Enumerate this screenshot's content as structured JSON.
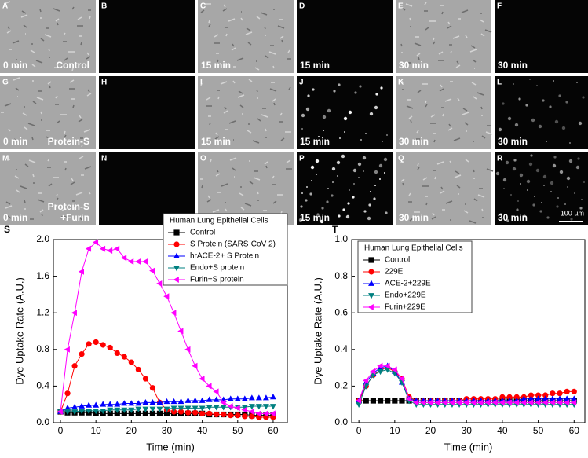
{
  "panels": [
    {
      "letter": "A",
      "time": "0 min",
      "condition": [
        "Control"
      ]
    },
    {
      "letter": "B"
    },
    {
      "letter": "C",
      "time": "15 min"
    },
    {
      "letter": "D",
      "time": "15 min"
    },
    {
      "letter": "E",
      "time": "30 min"
    },
    {
      "letter": "F",
      "time": "30 min"
    },
    {
      "letter": "G",
      "time": "0 min",
      "condition": [
        "Protein-S"
      ]
    },
    {
      "letter": "H"
    },
    {
      "letter": "I",
      "time": "15 min"
    },
    {
      "letter": "J",
      "time": "15 min"
    },
    {
      "letter": "K",
      "time": "30 min"
    },
    {
      "letter": "L",
      "time": "30 min"
    },
    {
      "letter": "M",
      "time": "0 min",
      "condition": [
        "Protein-S",
        "+Furin"
      ]
    },
    {
      "letter": "N"
    },
    {
      "letter": "O",
      "time": "15 min"
    },
    {
      "letter": "P",
      "time": "15 min"
    },
    {
      "letter": "Q",
      "time": "30 min"
    },
    {
      "letter": "R",
      "time": "30 min"
    }
  ],
  "scale_bar": "100 µm",
  "chart_data": [
    {
      "type": "line",
      "panel_label": "S",
      "xlabel": "Time (min)",
      "ylabel": "Dye Uptake Rate (A.U.)",
      "legend_title": "Human Lung Epithelial Cells",
      "legend": "upper right",
      "xlim": [
        -2,
        64
      ],
      "ylim": [
        0,
        2.0
      ],
      "xticks": [
        0,
        10,
        20,
        30,
        40,
        50,
        60
      ],
      "yticks": [
        {
          "value": 0,
          "label": "0.0"
        },
        0.4,
        0.8,
        1.2,
        1.6,
        {
          "value": 2,
          "label": "2.0"
        }
      ],
      "x": [
        0,
        2,
        4,
        6,
        8,
        10,
        12,
        14,
        16,
        18,
        20,
        22,
        24,
        26,
        28,
        30,
        32,
        34,
        36,
        38,
        40,
        42,
        44,
        46,
        48,
        50,
        52,
        54,
        56,
        58,
        60
      ],
      "series": [
        {
          "name": "Control",
          "color": "#000000",
          "marker": "square",
          "values": [
            0.12,
            0.11,
            0.11,
            0.11,
            0.11,
            0.1,
            0.1,
            0.1,
            0.1,
            0.1,
            0.1,
            0.1,
            0.1,
            0.1,
            0.1,
            0.1,
            0.1,
            0.1,
            0.1,
            0.1,
            0.1,
            0.09,
            0.09,
            0.09,
            0.09,
            0.09,
            0.09,
            0.08,
            0.08,
            0.08,
            0.08
          ]
        },
        {
          "name": "S Protein (SARS-CoV-2)",
          "color": "#ff0000",
          "marker": "circle",
          "values": [
            0.12,
            0.32,
            0.62,
            0.75,
            0.86,
            0.88,
            0.85,
            0.82,
            0.76,
            0.72,
            0.66,
            0.58,
            0.48,
            0.38,
            0.22,
            0.14,
            0.12,
            0.12,
            0.11,
            0.11,
            0.1,
            0.1,
            0.09,
            0.09,
            0.08,
            0.08,
            0.07,
            0.07,
            0.06,
            0.06,
            0.06
          ]
        },
        {
          "name": "hrACE-2+ S Protein",
          "color": "#0000ff",
          "marker": "triangle-up",
          "values": [
            0.12,
            0.16,
            0.17,
            0.18,
            0.19,
            0.19,
            0.2,
            0.2,
            0.2,
            0.21,
            0.21,
            0.21,
            0.22,
            0.22,
            0.22,
            0.23,
            0.23,
            0.23,
            0.24,
            0.24,
            0.24,
            0.25,
            0.25,
            0.25,
            0.26,
            0.26,
            0.26,
            0.27,
            0.27,
            0.27,
            0.28
          ]
        },
        {
          "name": "Endo+S protein",
          "color": "#008080",
          "marker": "triangle-down",
          "values": [
            0.12,
            0.12,
            0.12,
            0.13,
            0.13,
            0.13,
            0.13,
            0.14,
            0.14,
            0.14,
            0.14,
            0.15,
            0.15,
            0.15,
            0.15,
            0.15,
            0.16,
            0.16,
            0.16,
            0.16,
            0.16,
            0.17,
            0.17,
            0.17,
            0.17,
            0.17,
            0.17,
            0.18,
            0.18,
            0.18,
            0.18
          ]
        },
        {
          "name": "Furin+S protein",
          "color": "#ff00ff",
          "marker": "triangle-left",
          "values": [
            0.12,
            0.8,
            1.2,
            1.65,
            1.9,
            1.97,
            1.9,
            1.88,
            1.9,
            1.8,
            1.76,
            1.76,
            1.76,
            1.66,
            1.52,
            1.38,
            1.2,
            1.0,
            0.8,
            0.62,
            0.48,
            0.4,
            0.34,
            0.22,
            0.18,
            0.16,
            0.14,
            0.12,
            0.1,
            0.1,
            0.1
          ]
        }
      ]
    },
    {
      "type": "line",
      "panel_label": "T",
      "xlabel": "Time (min)",
      "ylabel": "Dye Uptake Rate (A.U.)",
      "legend_title": "Human Lung Epithelial Cells",
      "legend": "upper left",
      "xlim": [
        -2,
        63
      ],
      "ylim": [
        0,
        1.0
      ],
      "xticks": [
        0,
        10,
        20,
        30,
        40,
        50,
        60
      ],
      "yticks": [
        {
          "value": 0,
          "label": "0.0"
        },
        0.2,
        0.4,
        0.6,
        0.8,
        {
          "value": 1,
          "label": "1.0"
        }
      ],
      "x": [
        0,
        2,
        4,
        6,
        8,
        10,
        12,
        14,
        16,
        18,
        20,
        22,
        24,
        26,
        28,
        30,
        32,
        34,
        36,
        38,
        40,
        42,
        44,
        46,
        48,
        50,
        52,
        54,
        56,
        58,
        60
      ],
      "series": [
        {
          "name": "Control",
          "color": "#000000",
          "marker": "square",
          "values": [
            0.12,
            0.12,
            0.12,
            0.12,
            0.12,
            0.12,
            0.12,
            0.12,
            0.12,
            0.12,
            0.12,
            0.12,
            0.12,
            0.12,
            0.12,
            0.12,
            0.12,
            0.12,
            0.12,
            0.12,
            0.12,
            0.12,
            0.12,
            0.12,
            0.12,
            0.12,
            0.12,
            0.12,
            0.12,
            0.12,
            0.12
          ]
        },
        {
          "name": "229E",
          "color": "#ff0000",
          "marker": "circle",
          "values": [
            0.12,
            0.2,
            0.26,
            0.29,
            0.3,
            0.28,
            0.24,
            0.14,
            0.12,
            0.12,
            0.12,
            0.12,
            0.12,
            0.12,
            0.12,
            0.13,
            0.13,
            0.13,
            0.13,
            0.13,
            0.14,
            0.14,
            0.14,
            0.14,
            0.15,
            0.15,
            0.15,
            0.16,
            0.16,
            0.17,
            0.17
          ]
        },
        {
          "name": "ACE-2+229E",
          "color": "#0000ff",
          "marker": "triangle-up",
          "values": [
            0.12,
            0.22,
            0.27,
            0.3,
            0.31,
            0.28,
            0.22,
            0.13,
            0.12,
            0.12,
            0.12,
            0.12,
            0.12,
            0.12,
            0.12,
            0.12,
            0.12,
            0.12,
            0.12,
            0.12,
            0.12,
            0.12,
            0.12,
            0.13,
            0.13,
            0.13,
            0.13,
            0.13,
            0.13,
            0.13,
            0.13
          ]
        },
        {
          "name": "Endo+229E",
          "color": "#008080",
          "marker": "triangle-down",
          "values": [
            0.1,
            0.2,
            0.26,
            0.28,
            0.29,
            0.27,
            0.22,
            0.12,
            0.1,
            0.1,
            0.1,
            0.1,
            0.1,
            0.1,
            0.1,
            0.1,
            0.1,
            0.1,
            0.1,
            0.1,
            0.1,
            0.1,
            0.1,
            0.1,
            0.1,
            0.1,
            0.1,
            0.1,
            0.1,
            0.1,
            0.1
          ]
        },
        {
          "name": "Furin+229E",
          "color": "#ff00ff",
          "marker": "triangle-left",
          "values": [
            0.12,
            0.23,
            0.28,
            0.31,
            0.31,
            0.29,
            0.24,
            0.13,
            0.11,
            0.11,
            0.11,
            0.11,
            0.11,
            0.11,
            0.11,
            0.11,
            0.11,
            0.11,
            0.11,
            0.11,
            0.11,
            0.11,
            0.11,
            0.11,
            0.11,
            0.11,
            0.11,
            0.11,
            0.11,
            0.11,
            0.11
          ]
        }
      ]
    }
  ]
}
